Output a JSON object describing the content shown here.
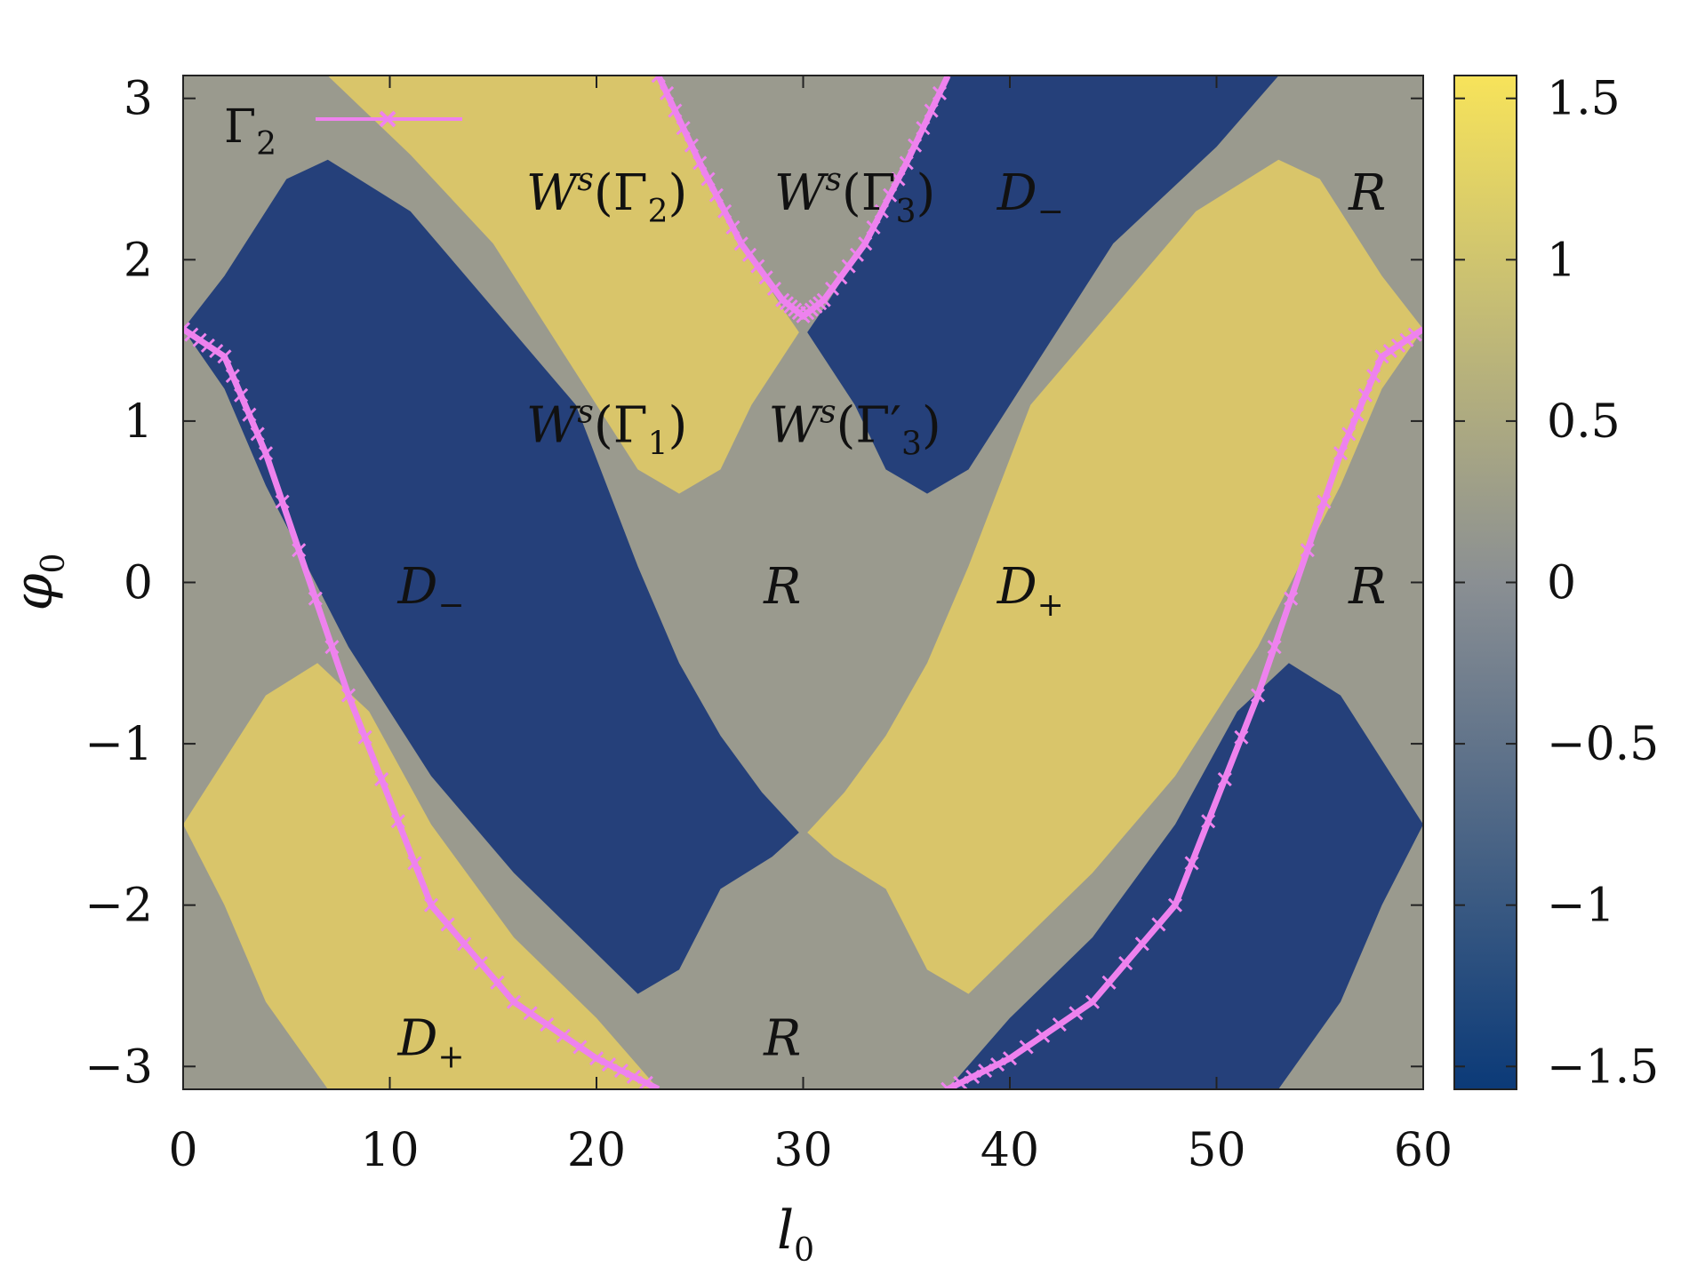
{
  "chart_data": {
    "type": "heatmap",
    "xlabel": "l",
    "xlabel_sub": "0",
    "ylabel": "φ",
    "ylabel_sub": "0",
    "xlim": [
      0,
      60
    ],
    "ylim": [
      -3.14159,
      3.14159
    ],
    "x_ticks": [
      0,
      10,
      20,
      30,
      40,
      50,
      60
    ],
    "x_tick_labels": [
      "0",
      "10",
      "20",
      "30",
      "40",
      "50",
      "60"
    ],
    "y_ticks": [
      -3,
      -2,
      -1,
      0,
      1,
      2,
      3
    ],
    "y_tick_labels": [
      "−3",
      "−2",
      "−1",
      "0",
      "1",
      "2",
      "3"
    ],
    "colorbar": {
      "range": [
        -1.5708,
        1.5708
      ],
      "ticks": [
        -1.5,
        -1,
        -0.5,
        0,
        0.5,
        1,
        1.5
      ],
      "tick_labels": [
        "−1.5",
        "−1",
        "−0.5",
        "0",
        "0.5",
        "1",
        "1.5"
      ],
      "colors": [
        "#0b3a78",
        "#8a8f93",
        "#f7e35a"
      ]
    },
    "colors": {
      "negative": "#25407a",
      "neutral": "#9a9a8e",
      "positive": "#d9c56a",
      "curve": "#ee82ee"
    },
    "legend": {
      "position": "top-left",
      "entries": [
        {
          "symbol": "Γ",
          "sub": "2",
          "marker": "x-line"
        }
      ]
    },
    "curves": [
      {
        "name": "Γ2 branch from top-left",
        "points": [
          [
            0,
            1.57
          ],
          [
            2,
            1.4
          ],
          [
            4,
            0.8
          ],
          [
            8,
            -0.7
          ],
          [
            12,
            -2
          ],
          [
            16,
            -2.6
          ],
          [
            20,
            -2.95
          ],
          [
            23,
            -3.14
          ]
        ]
      },
      {
        "name": "Γ2 arc through top",
        "points": [
          [
            23,
            3.14
          ],
          [
            25,
            2.6
          ],
          [
            27,
            2.1
          ],
          [
            29,
            1.75
          ],
          [
            30,
            1.65
          ],
          [
            31,
            1.75
          ],
          [
            33,
            2.1
          ],
          [
            35,
            2.6
          ],
          [
            37,
            3.14
          ]
        ]
      },
      {
        "name": "Γ2 branch to right edge",
        "points": [
          [
            37,
            -3.14
          ],
          [
            40,
            -2.95
          ],
          [
            44,
            -2.6
          ],
          [
            48,
            -2
          ],
          [
            52,
            -0.7
          ],
          [
            56,
            0.8
          ],
          [
            58,
            1.4
          ],
          [
            60,
            1.57
          ]
        ]
      }
    ],
    "annotations": [
      {
        "text": "W",
        "sup": "s",
        "arg": "Γ",
        "arg_sub": "2",
        "l0": 20.5,
        "phi0": 2.42
      },
      {
        "text": "W",
        "sup": "s",
        "arg": "Γ",
        "arg_sub": "3",
        "l0": 32.5,
        "phi0": 2.42
      },
      {
        "text": "D",
        "sub": "−",
        "l0": 41.0,
        "phi0": 2.42
      },
      {
        "text": "R",
        "l0": 57.3,
        "phi0": 2.42
      },
      {
        "text": "W",
        "sup": "s",
        "arg": "Γ",
        "arg_sub": "1",
        "l0": 20.5,
        "phi0": 0.98
      },
      {
        "text": "W",
        "sup": "s",
        "arg": "Γ′",
        "arg_sub": "3",
        "l0": 32.5,
        "phi0": 0.98
      },
      {
        "text": "D",
        "sub": "−",
        "l0": 12.0,
        "phi0": -0.02
      },
      {
        "text": "R",
        "l0": 29.0,
        "phi0": -0.02
      },
      {
        "text": "D",
        "sub": "+",
        "l0": 41.0,
        "phi0": -0.02
      },
      {
        "text": "R",
        "l0": 57.3,
        "phi0": -0.02
      },
      {
        "text": "D",
        "sub": "+",
        "l0": 12.0,
        "phi0": -2.82
      },
      {
        "text": "R",
        "l0": 29.0,
        "phi0": -2.82
      }
    ]
  }
}
